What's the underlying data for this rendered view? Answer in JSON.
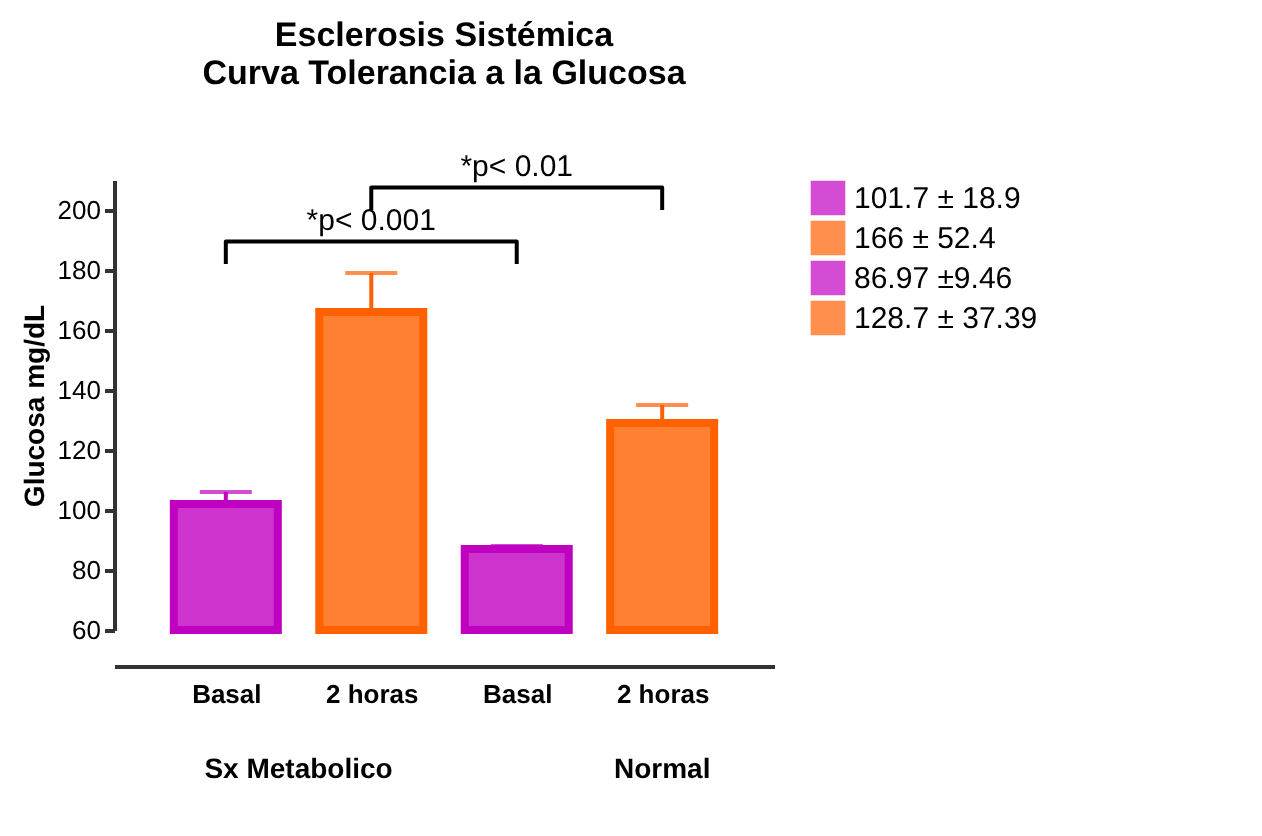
{
  "chart_data": {
    "type": "bar",
    "title": "Esclerosis Sistémica\nCurva Tolerancia a la Glucosa",
    "ylabel": "Glucosa  mg/dL",
    "categories": [
      "Basal",
      "2 horas",
      "Basal",
      "2 horas"
    ],
    "series": [
      {
        "name": "101.7 ± 18.9",
        "color": "#c000c0",
        "values": [
          102,
          null,
          null,
          null
        ],
        "errors": [
          [
            102,
            106
          ],
          null,
          null,
          null
        ]
      },
      {
        "name": "166 ± 52.4",
        "color": "#ff6000",
        "values": [
          null,
          166,
          null,
          null
        ],
        "errors": [
          null,
          [
            166,
            179
          ],
          null,
          null
        ]
      },
      {
        "name": "86.97 ±9.46",
        "color": "#c000c0",
        "values": [
          null,
          null,
          87,
          null
        ],
        "errors": [
          null,
          null,
          [
            87,
            88
          ],
          null
        ]
      },
      {
        "name": "128.7 ± 37.39",
        "color": "#ff6000",
        "values": [
          null,
          null,
          null,
          129
        ],
        "errors": [
          null,
          null,
          null,
          [
            129,
            135
          ]
        ]
      }
    ],
    "ylim": [
      60,
      210
    ],
    "yticks": [
      60,
      80,
      100,
      120,
      140,
      160,
      180,
      200
    ],
    "grid": false,
    "legend": "right",
    "annotations": [
      "*p< 0.001",
      "*p< 0.01",
      "Sx Metabolico",
      "Normal"
    ]
  }
}
